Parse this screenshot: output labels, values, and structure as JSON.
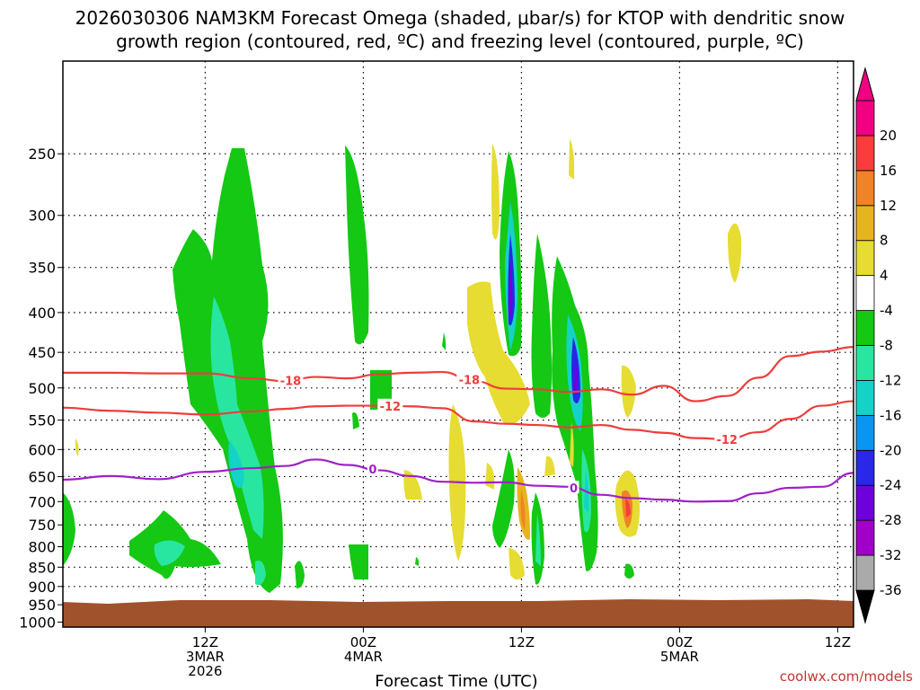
{
  "chart_data": {
    "type": "heatmap",
    "title_lines": [
      "2026030306 NAM3KM Forecast Omega (shaded, μbar/s) for KTOP with dendritic snow",
      "growth region (contoured, red, ºC) and freezing level (contoured, purple, ºC)"
    ],
    "xlabel": "Forecast Time (UTC)",
    "ylabel": "",
    "credit": "coolwx.com/models",
    "x_unit": "forecast hour",
    "xlim": [
      -5,
      45
    ],
    "y_unit": "hPa",
    "ylim": [
      1015,
      190
    ],
    "y_ticks": [
      250,
      300,
      350,
      400,
      450,
      500,
      550,
      600,
      650,
      700,
      750,
      800,
      850,
      900,
      950,
      1000
    ],
    "y_tick_labels": [
      "250",
      "300",
      "350",
      "400",
      "450",
      "500",
      "550",
      "600",
      "650",
      "700",
      "750",
      "800",
      "850",
      "900",
      "950",
      "1000"
    ],
    "x_ticks": [
      {
        "hour": 4,
        "lines": [
          "12Z",
          "3MAR",
          "2026"
        ]
      },
      {
        "hour": 14,
        "lines": [
          "00Z",
          "4MAR"
        ]
      },
      {
        "hour": 24,
        "lines": [
          "12Z"
        ]
      },
      {
        "hour": 34,
        "lines": [
          "00Z",
          "5MAR"
        ]
      },
      {
        "hour": 44,
        "lines": [
          "12Z"
        ]
      }
    ],
    "colorbar": {
      "levels": [
        -36,
        -32,
        -28,
        -24,
        -20,
        -16,
        -12,
        -8,
        -4,
        4,
        8,
        12,
        16,
        20
      ],
      "labels": [
        "-36",
        "-32",
        "-28",
        "-24",
        "-20",
        "-16",
        "-12",
        "-8",
        "-4",
        "4",
        "8",
        "12",
        "16",
        "20"
      ],
      "colors": [
        "#aaaaaa",
        "#a000c8",
        "#6e00dc",
        "#2828e6",
        "#0a96f0",
        "#14d2c8",
        "#28e6a0",
        "#14c814",
        "#ffffff",
        "#e6dc32",
        "#e6b41e",
        "#f08228",
        "#fa3c3c",
        "#f00082"
      ],
      "under_color": "#000000",
      "over_color": "#f00082"
    },
    "ground_color": "#a0522d",
    "series": [
      {
        "name": "-18 ºC isotherm",
        "color": "#f03c3c",
        "label": "-18",
        "label_at": [
          9.4,
          20.7
        ],
        "x": [
          -5,
          -2,
          1,
          4,
          7,
          9,
          11,
          13,
          15,
          17,
          19,
          21,
          23,
          25,
          27,
          29,
          31,
          33,
          35,
          37,
          39,
          41,
          43,
          45
        ],
        "y": [
          478,
          478,
          479,
          479,
          486,
          490,
          484,
          486,
          480,
          478,
          477,
          490,
          501,
          502,
          506,
          502,
          510,
          497,
          520,
          512,
          485,
          455,
          449,
          443
        ]
      },
      {
        "name": "-12 ºC isotherm",
        "color": "#f03c3c",
        "label": "-12",
        "label_at": [
          15.7,
          37.0
        ],
        "x": [
          -5,
          -2,
          1,
          4,
          7,
          9,
          11,
          13,
          15,
          17,
          19,
          21,
          23,
          25,
          27,
          29,
          31,
          33,
          35,
          37,
          39,
          41,
          43,
          45
        ],
        "y": [
          530,
          535,
          538,
          541,
          536,
          532,
          528,
          527,
          527,
          528,
          531,
          552,
          556,
          558,
          562,
          558,
          566,
          571,
          580,
          582,
          570,
          548,
          527,
          520
        ]
      },
      {
        "name": "0 ºC freezing level",
        "color": "#a020c8",
        "label": "0",
        "label_at": [
          14.6,
          27.3
        ],
        "x": [
          -5,
          -2,
          1,
          4,
          7,
          9,
          11,
          13,
          15,
          17,
          19,
          21,
          23,
          25,
          27,
          29,
          31,
          33,
          35,
          37,
          39,
          41,
          43,
          45
        ],
        "y": [
          656,
          649,
          655,
          641,
          634,
          630,
          618,
          628,
          638,
          649,
          660,
          662,
          661,
          668,
          670,
          686,
          693,
          696,
          700,
          699,
          683,
          672,
          670,
          643
        ]
      }
    ]
  }
}
